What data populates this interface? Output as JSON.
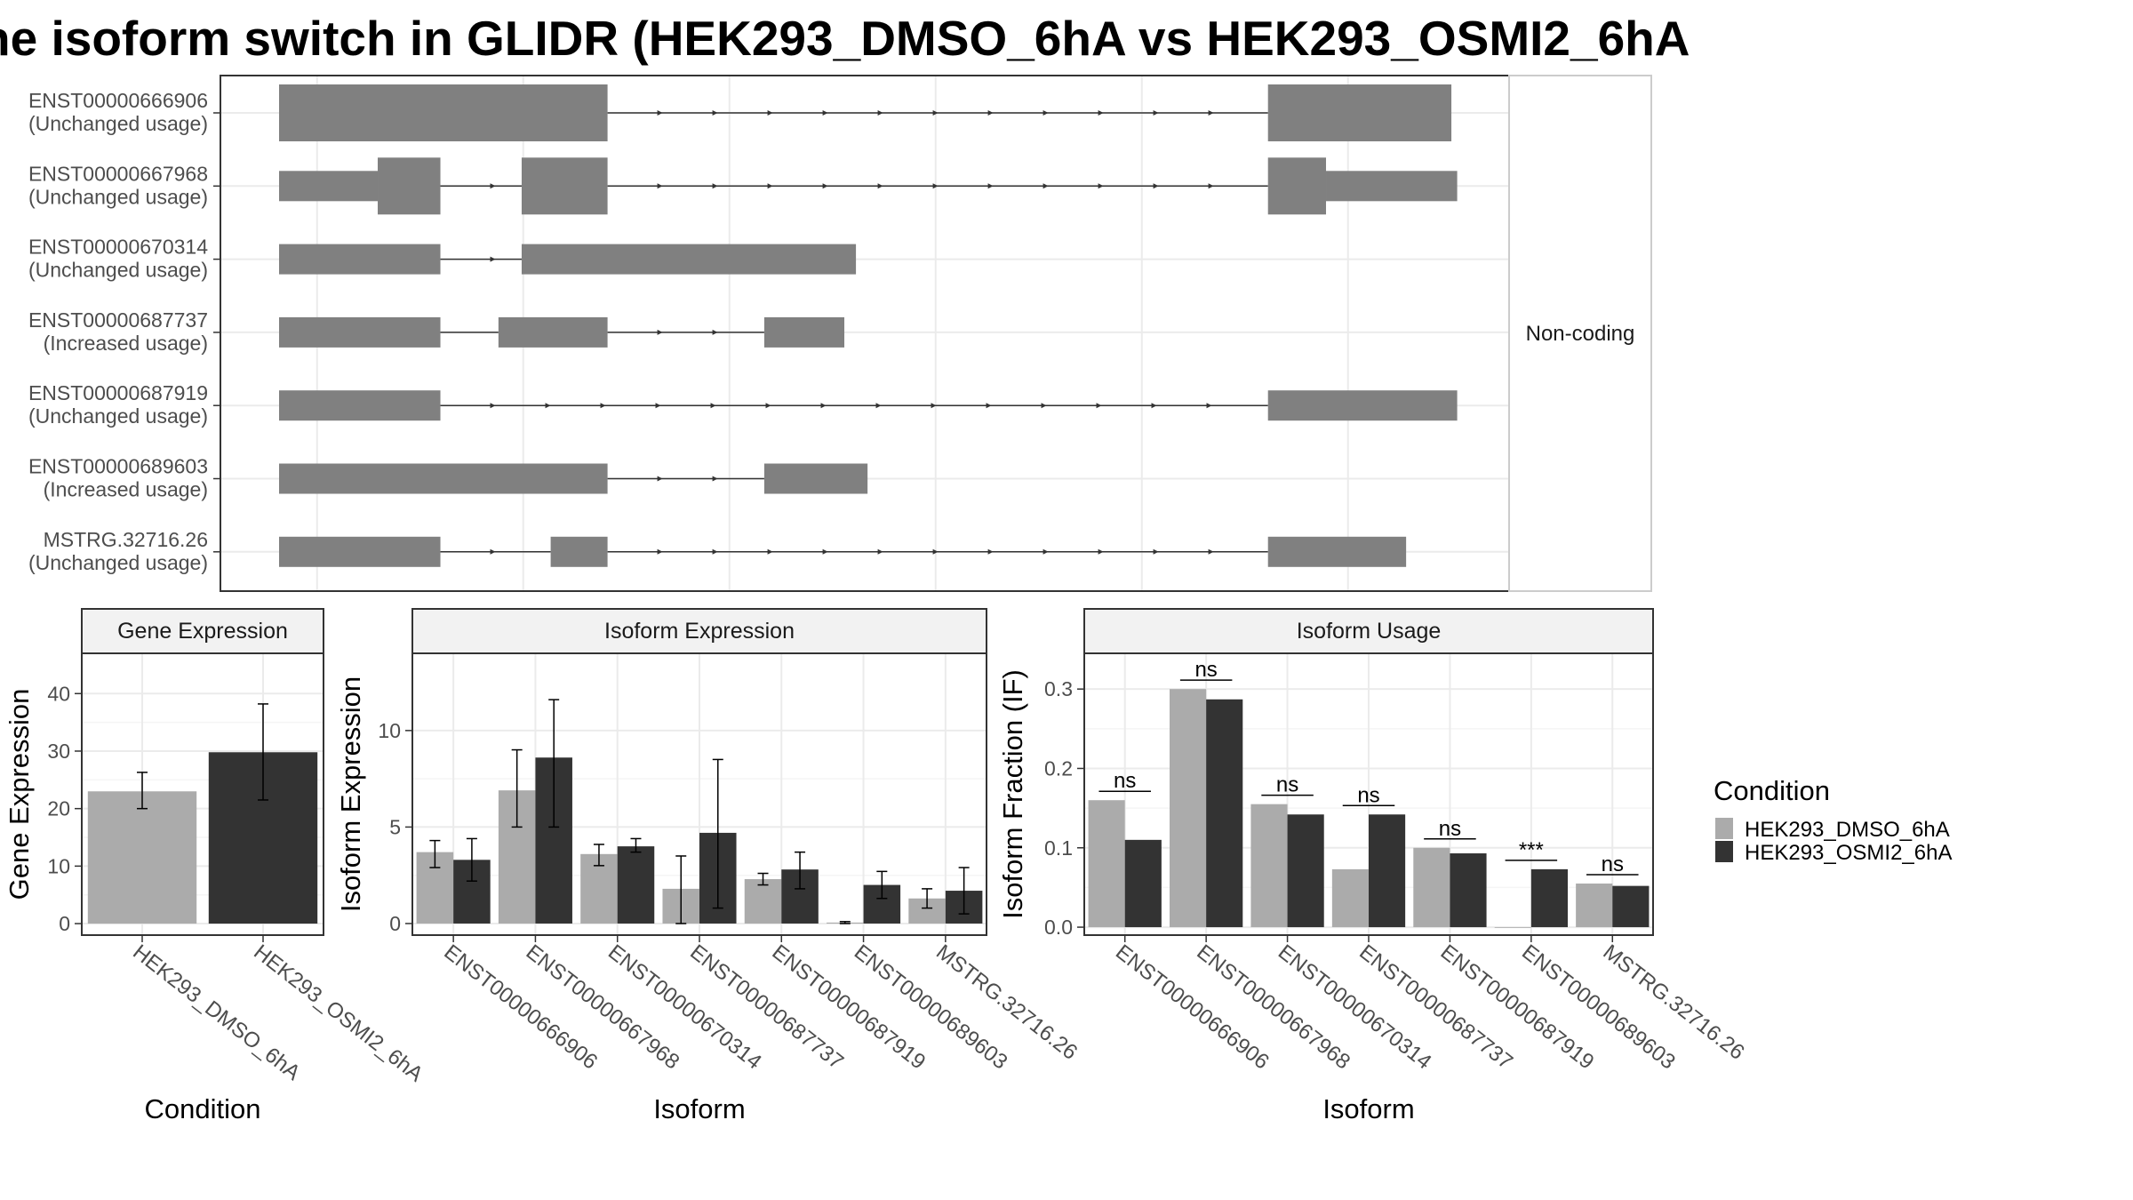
{
  "title": "he isoform switch in GLIDR (HEK293_DMSO_6hA vs HEK293_OSMI2_6hA",
  "colors": {
    "dmso": "#ababab",
    "osmi2": "#333333",
    "exon": "#808080",
    "grid": "#ebebeb",
    "strip": "#f2f2f2"
  },
  "chart_data": [
    {
      "type": "transcript-structure",
      "facet_label": "Non-coding",
      "transcripts": [
        {
          "id": "ENST00000666906",
          "usage": "(Unchanged usage)",
          "exons": [
            [
              0,
              0.283,
              "thick"
            ],
            [
              0.852,
              1.01,
              "thick"
            ]
          ]
        },
        {
          "id": "ENST00000667968",
          "usage": "(Unchanged usage)",
          "exons": [
            [
              0,
              0.085,
              "thin"
            ],
            [
              0.085,
              0.139,
              "thick"
            ],
            [
              0.209,
              0.283,
              "thick"
            ],
            [
              0.852,
              0.902,
              "thick"
            ],
            [
              0.902,
              1.015,
              "thin"
            ]
          ]
        },
        {
          "id": "ENST00000670314",
          "usage": "(Unchanged usage)",
          "exons": [
            [
              0,
              0.139,
              "thin"
            ],
            [
              0.209,
              0.497,
              "thin"
            ]
          ]
        },
        {
          "id": "ENST00000687737",
          "usage": "(Increased usage)",
          "exons": [
            [
              0,
              0.139,
              "thin"
            ],
            [
              0.189,
              0.283,
              "thin"
            ],
            [
              0.418,
              0.487,
              "thin"
            ]
          ]
        },
        {
          "id": "ENST00000687919",
          "usage": "(Unchanged usage)",
          "exons": [
            [
              0,
              0.139,
              "thin"
            ],
            [
              0.852,
              1.015,
              "thin"
            ]
          ]
        },
        {
          "id": "ENST00000689603",
          "usage": "(Increased usage)",
          "exons": [
            [
              0,
              0.283,
              "thin"
            ],
            [
              0.418,
              0.507,
              "thin"
            ]
          ]
        },
        {
          "id": "MSTRG.32716.26",
          "usage": "(Unchanged usage)",
          "exons": [
            [
              0,
              0.139,
              "thin"
            ],
            [
              0.234,
              0.283,
              "thin"
            ],
            [
              0.852,
              0.971,
              "thin"
            ]
          ]
        }
      ]
    },
    {
      "type": "bar",
      "facet_label": "Gene Expression",
      "xlabel": "Condition",
      "ylabel": "Gene Expression",
      "ylim": [
        -2,
        47
      ],
      "yticks": [
        0,
        10,
        20,
        30,
        40
      ],
      "categories": [
        "HEK293_DMSO_6hA",
        "HEK293_OSMI2_6hA"
      ],
      "values": [
        23,
        29.8
      ],
      "err_low": [
        20,
        21.5
      ],
      "err_high": [
        26.3,
        38.2
      ]
    },
    {
      "type": "bar",
      "facet_label": "Isoform Expression",
      "xlabel": "Isoform",
      "ylabel": "Isoform Expression",
      "ylim": [
        -0.6,
        14
      ],
      "yticks": [
        0,
        5,
        10
      ],
      "categories": [
        "ENST00000666906",
        "ENST00000667968",
        "ENST00000670314",
        "ENST00000687737",
        "ENST00000687919",
        "ENST00000689603",
        "MSTRG.32716.26"
      ],
      "series": [
        {
          "name": "HEK293_DMSO_6hA",
          "values": [
            3.7,
            6.9,
            3.6,
            1.8,
            2.3,
            0.05,
            1.3
          ],
          "err_low": [
            2.9,
            5.0,
            3.0,
            0.0,
            2.0,
            0.0,
            0.8
          ],
          "err_high": [
            4.3,
            9.0,
            4.1,
            3.5,
            2.6,
            0.1,
            1.8
          ]
        },
        {
          "name": "HEK293_OSMI2_6hA",
          "values": [
            3.3,
            8.6,
            4.0,
            4.7,
            2.8,
            2.0,
            1.7
          ],
          "err_low": [
            2.2,
            5.0,
            3.7,
            0.8,
            1.8,
            1.3,
            0.5
          ],
          "err_high": [
            4.4,
            11.6,
            4.4,
            8.5,
            3.7,
            2.7,
            2.9
          ]
        }
      ]
    },
    {
      "type": "bar",
      "facet_label": "Isoform Usage",
      "xlabel": "Isoform",
      "ylabel": "Isoform Fraction (IF)",
      "ylim": [
        -0.01,
        0.345
      ],
      "yticks": [
        0.0,
        0.1,
        0.2,
        0.3
      ],
      "ytick_labels": [
        "0.0",
        "0.1",
        "0.2",
        "0.3"
      ],
      "categories": [
        "ENST00000666906",
        "ENST00000667968",
        "ENST00000670314",
        "ENST00000687737",
        "ENST00000687919",
        "ENST00000689603",
        "MSTRG.32716.26"
      ],
      "series": [
        {
          "name": "HEK293_DMSO_6hA",
          "values": [
            0.16,
            0.3,
            0.155,
            0.073,
            0.1,
            0.0,
            0.055
          ]
        },
        {
          "name": "HEK293_OSMI2_6hA",
          "values": [
            0.11,
            0.287,
            0.142,
            0.142,
            0.093,
            0.073,
            0.052
          ]
        }
      ],
      "significance": [
        "ns",
        "ns",
        "ns",
        "ns",
        "ns",
        "***",
        "ns"
      ]
    }
  ],
  "legend": {
    "title": "Condition",
    "items": [
      "HEK293_DMSO_6hA",
      "HEK293_OSMI2_6hA"
    ]
  }
}
